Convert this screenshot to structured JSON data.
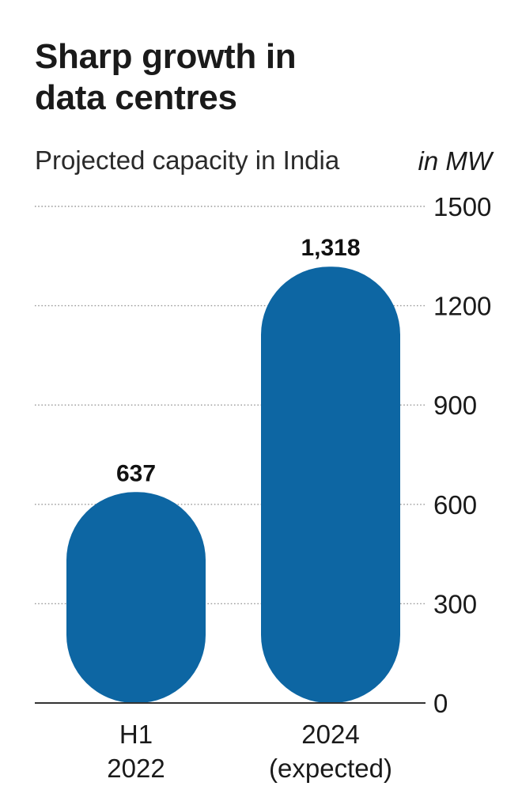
{
  "chart_data": {
    "type": "bar",
    "title": "Sharp growth in data centres",
    "subtitle": "Projected capacity in India",
    "unit_label": "in MW",
    "categories": [
      [
        "H1",
        "2022"
      ],
      [
        "2024",
        "(expected)"
      ]
    ],
    "values": [
      637,
      1318
    ],
    "value_labels": [
      "637",
      "1,318"
    ],
    "ylim": [
      0,
      1500
    ],
    "yticks": [
      0,
      300,
      600,
      900,
      1200,
      1500
    ],
    "ytick_labels": [
      "0",
      "300",
      "600",
      "900",
      "1200",
      "1500"
    ],
    "grid": true,
    "bar_color": "#0d66a3",
    "grid_color": "#9a9a9a",
    "axis_color": "#333333"
  }
}
